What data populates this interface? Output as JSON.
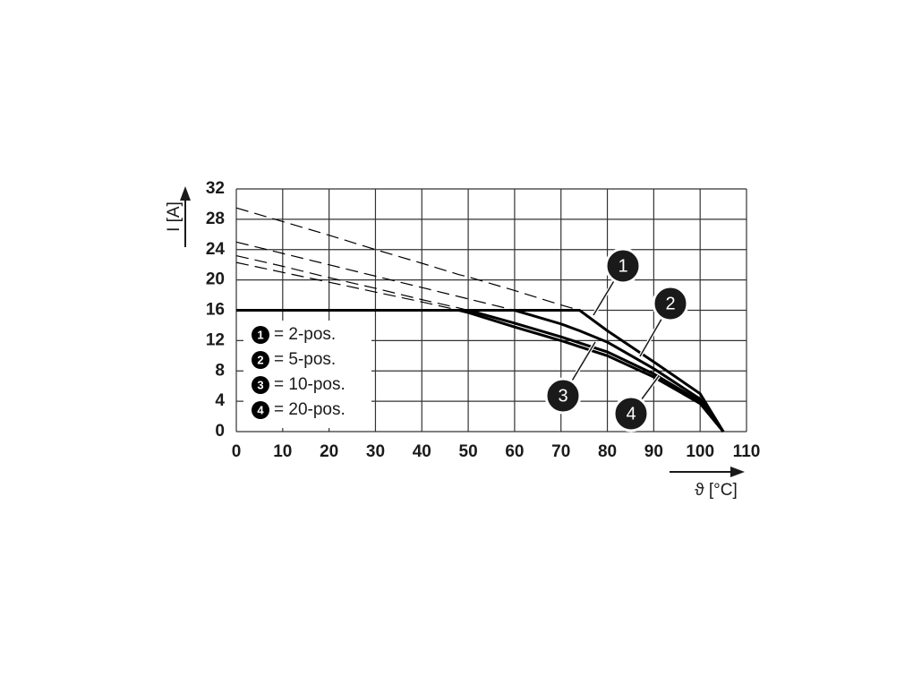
{
  "chart_data": {
    "type": "line",
    "x_label": "ϑ [°C]",
    "y_label": "I [A]",
    "x": [
      0,
      10,
      20,
      30,
      40,
      48,
      50,
      60,
      70,
      74,
      80,
      90,
      100,
      105
    ],
    "xlim": [
      0,
      110
    ],
    "xticks": [
      0,
      10,
      20,
      30,
      40,
      50,
      60,
      70,
      80,
      90,
      100,
      110
    ],
    "ylim": [
      0,
      32
    ],
    "yticks": [
      0,
      4,
      8,
      12,
      16,
      20,
      24,
      28,
      32
    ],
    "grid": true,
    "legend": "lower left",
    "series": [
      {
        "name": "= 2-pos.",
        "label": "1",
        "color": "#000000",
        "values": [
          16,
          16,
          16,
          16,
          16,
          16,
          16,
          16,
          16,
          16,
          13.3,
          9.2,
          5,
          0
        ],
        "dashed_values": [
          29.5,
          27.7,
          25.9,
          24.0,
          22.2,
          20.7,
          20.4,
          18.6,
          16.7,
          16,
          null,
          null,
          null,
          null
        ]
      },
      {
        "name": "= 5-pos.",
        "label": "2",
        "color": "#000000",
        "values": [
          16,
          16,
          16,
          16,
          16,
          16,
          16,
          16,
          14.2,
          13.3,
          11.8,
          8.3,
          4.3,
          0
        ],
        "dashed_values": [
          25,
          23.5,
          22,
          20.5,
          19,
          17.8,
          17.5,
          16,
          null,
          null,
          null,
          null,
          null,
          null
        ]
      },
      {
        "name": "= 10-pos.",
        "label": "3",
        "color": "#000000",
        "values": [
          16,
          16,
          16,
          16,
          16,
          16,
          16,
          14.3,
          12.5,
          11.7,
          10.5,
          7.6,
          4,
          0
        ],
        "dashed_values": [
          23.2,
          21.8,
          20.3,
          18.9,
          17.4,
          16.3,
          16,
          null,
          null,
          null,
          null,
          null,
          null,
          null
        ]
      },
      {
        "name": "= 20-pos.",
        "label": "4",
        "color": "#000000",
        "values": [
          16,
          16,
          16,
          16,
          16,
          16,
          15.7,
          13.8,
          12,
          11.2,
          10,
          7.2,
          3.7,
          0
        ],
        "dashed_values": [
          22.3,
          21,
          19.7,
          18.4,
          17.1,
          16,
          null,
          null,
          null,
          null,
          null,
          null,
          null,
          null
        ]
      }
    ]
  }
}
